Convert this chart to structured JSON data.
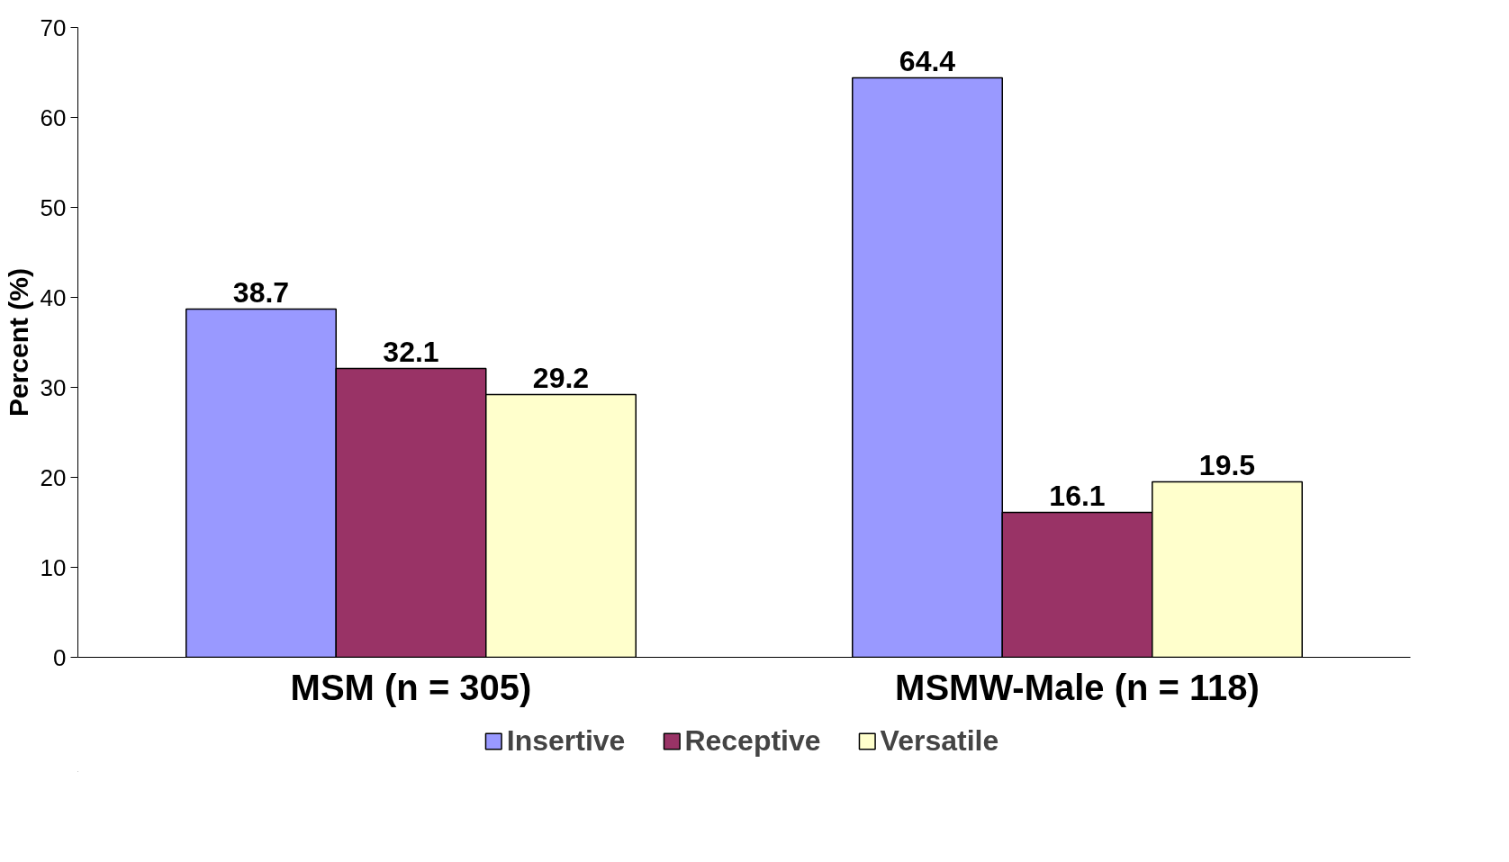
{
  "chart_data": {
    "type": "bar",
    "ylabel": "Percent (%)",
    "categories": [
      "MSM (n = 305)",
      "MSMW-Male (n = 118)"
    ],
    "series": [
      {
        "name": "Insertive",
        "color": "#9999ff",
        "values": [
          38.7,
          64.4
        ]
      },
      {
        "name": "Receptive",
        "color": "#993366",
        "values": [
          32.1,
          16.1
        ]
      },
      {
        "name": "Versatile",
        "color": "#ffffcc",
        "values": [
          29.2,
          19.5
        ]
      }
    ],
    "ylim": [
      0,
      70
    ],
    "yticks": [
      0,
      10,
      20,
      30,
      40,
      50,
      60,
      70
    ],
    "grid": false,
    "legend": "bottom",
    "data_labels": true
  }
}
